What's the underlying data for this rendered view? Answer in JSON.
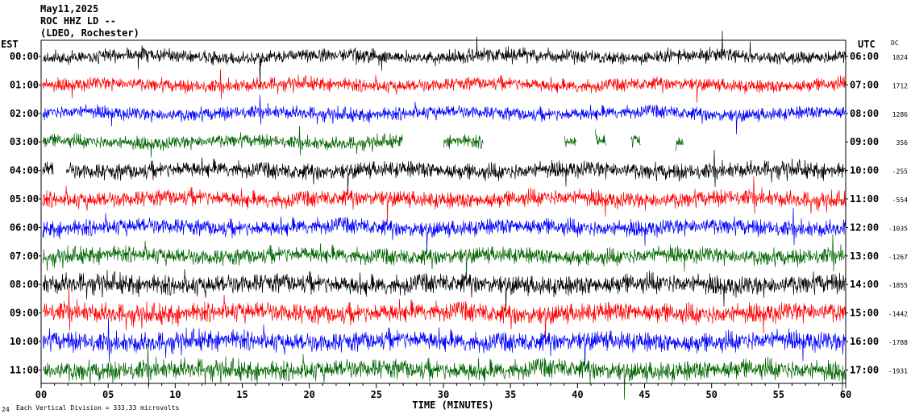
{
  "header": {
    "date": "May11,2025",
    "station": "ROC HHZ LD --",
    "location": "(LDEO, Rochester)"
  },
  "axes": {
    "left_title": "EST",
    "right_title": "UTC",
    "dc_title": "DC",
    "xlabel": "TIME (MINUTES)",
    "footnote": "Each Vertical Division =  333.33 microvolts",
    "corner_mark": "24"
  },
  "colors": {
    "trace_cycle": [
      "#000000",
      "#ff0000",
      "#0000ff",
      "#006400"
    ]
  },
  "chart_data": {
    "type": "line",
    "title": "May11,2025 ROC HHZ LD -- (LDEO, Rochester)",
    "xlabel": "TIME (MINUTES)",
    "xlim": [
      0,
      60
    ],
    "x_ticks": [
      "00",
      "05",
      "10",
      "15",
      "20",
      "25",
      "30",
      "35",
      "40",
      "45",
      "50",
      "55",
      "60"
    ],
    "rows": [
      {
        "est": "00:00",
        "utc": "06:00",
        "dc": "1824"
      },
      {
        "est": "01:00",
        "utc": "07:00",
        "dc": "1712"
      },
      {
        "est": "02:00",
        "utc": "08:00",
        "dc": "1286"
      },
      {
        "est": "03:00",
        "utc": "09:00",
        "dc": "356"
      },
      {
        "est": "04:00",
        "utc": "10:00",
        "dc": "-255"
      },
      {
        "est": "05:00",
        "utc": "11:00",
        "dc": "-554"
      },
      {
        "est": "06:00",
        "utc": "12:00",
        "dc": "-1035"
      },
      {
        "est": "07:00",
        "utc": "13:00",
        "dc": "-1267"
      },
      {
        "est": "08:00",
        "utc": "14:00",
        "dc": "-1855"
      },
      {
        "est": "09:00",
        "utc": "15:00",
        "dc": "-1442"
      },
      {
        "est": "10:00",
        "utc": "16:00",
        "dc": "-1788"
      },
      {
        "est": "11:00",
        "utc": "17:00",
        "dc": "-1931"
      }
    ],
    "grid": false
  }
}
